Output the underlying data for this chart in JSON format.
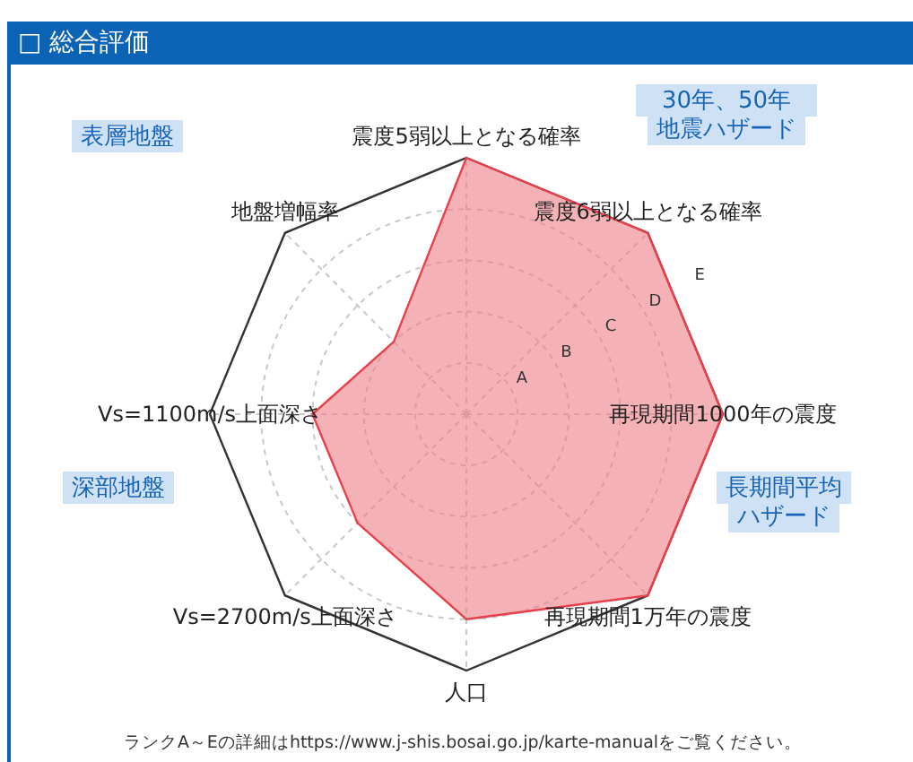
{
  "chart_data": {
    "type": "radar",
    "title": "□ 総合評価",
    "categories": [
      "震度5弱以上となる確率",
      "震度6弱以上となる確率",
      "再現期間1000年の震度",
      "再現期間1万年の震度",
      "人口",
      "Vs=2700m/s上面深さ",
      "Vs=1100m/s上面深さ",
      "地盤増幅率"
    ],
    "series": [
      {
        "color": "#ef7f86",
        "values": [
          5,
          5,
          5,
          5,
          4,
          3,
          3,
          2
        ]
      }
    ],
    "ylim": [
      0,
      5
    ],
    "yticks": [
      {
        "value": 1,
        "label": "A"
      },
      {
        "value": 2,
        "label": "B"
      },
      {
        "value": 3,
        "label": "C"
      },
      {
        "value": 4,
        "label": "D"
      },
      {
        "value": 5,
        "label": "E"
      }
    ],
    "grid": true,
    "annotations": [
      "表層地盤",
      "30年、50年",
      "地震ハザード",
      "深部地盤",
      "長期間平均",
      "ハザード",
      "ランクA～Eの詳細はhttps://www.j-shis.bosai.go.jp/karte-manualをご覧ください。"
    ]
  }
}
